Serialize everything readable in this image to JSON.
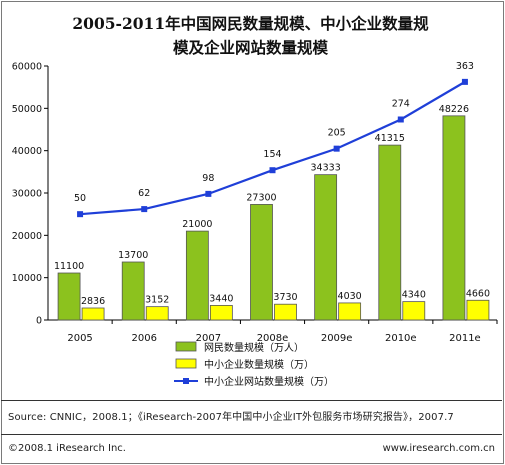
{
  "chart_data": {
    "type": "bar",
    "title_line1": "2005-2011年中国网民数量规模、中小企业数量规",
    "title_line2": "模及企业网站数量规模",
    "categories": [
      "2005",
      "2006",
      "2007",
      "2008e",
      "2009e",
      "2010e",
      "2011e"
    ],
    "ylim": [
      0,
      60000
    ],
    "yticks": [
      0,
      10000,
      20000,
      30000,
      40000,
      50000,
      60000
    ],
    "grid": false,
    "legend_position": "bottom",
    "series": [
      {
        "name": "网民数量规模（万人）",
        "kind": "bar",
        "color": "#8cc21e",
        "values": [
          11100,
          13700,
          21000,
          27300,
          34333,
          41315,
          48226
        ]
      },
      {
        "name": "中小企业数量规模（万）",
        "kind": "bar",
        "color": "#ffff00",
        "values": [
          2836,
          3152,
          3440,
          3730,
          4030,
          4340,
          4660
        ]
      },
      {
        "name": "中小企业网站数量规模（万）",
        "kind": "line",
        "color": "#1f3fd8",
        "values": [
          50,
          62,
          98,
          154,
          205,
          274,
          363
        ]
      }
    ]
  },
  "source": "Source:  CNNIC，2008.1；《iResearch-2007年中国中小企业IT外包服务市场研究报告》，2007.7",
  "copyright": "©2008.1 iResearch Inc.",
  "website": "www.iresearch.com.cn"
}
